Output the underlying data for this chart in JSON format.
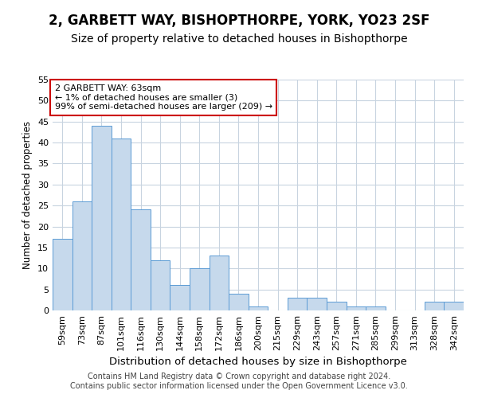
{
  "title": "2, GARBETT WAY, BISHOPTHORPE, YORK, YO23 2SF",
  "subtitle": "Size of property relative to detached houses in Bishopthorpe",
  "xlabel": "Distribution of detached houses by size in Bishopthorpe",
  "ylabel": "Number of detached properties",
  "categories": [
    "59sqm",
    "73sqm",
    "87sqm",
    "101sqm",
    "116sqm",
    "130sqm",
    "144sqm",
    "158sqm",
    "172sqm",
    "186sqm",
    "200sqm",
    "215sqm",
    "229sqm",
    "243sqm",
    "257sqm",
    "271sqm",
    "285sqm",
    "299sqm",
    "313sqm",
    "328sqm",
    "342sqm"
  ],
  "values": [
    17,
    26,
    44,
    41,
    24,
    12,
    6,
    10,
    13,
    4,
    1,
    0,
    3,
    3,
    2,
    1,
    1,
    0,
    0,
    2,
    2
  ],
  "bar_color": "#c6d9ec",
  "bar_edge_color": "#5b9bd5",
  "annotation_box_text": "2 GARBETT WAY: 63sqm\n← 1% of detached houses are smaller (3)\n99% of semi-detached houses are larger (209) →",
  "annotation_box_color": "#ffffff",
  "annotation_box_edge_color": "#cc0000",
  "grid_color": "#c8d4e0",
  "background_color": "#ffffff",
  "footer_text": "Contains HM Land Registry data © Crown copyright and database right 2024.\nContains public sector information licensed under the Open Government Licence v3.0.",
  "title_fontsize": 12,
  "subtitle_fontsize": 10,
  "xlabel_fontsize": 9.5,
  "ylabel_fontsize": 8.5,
  "tick_fontsize": 8,
  "footer_fontsize": 7,
  "ylim": [
    0,
    55
  ],
  "yticks": [
    0,
    5,
    10,
    15,
    20,
    25,
    30,
    35,
    40,
    45,
    50,
    55
  ]
}
